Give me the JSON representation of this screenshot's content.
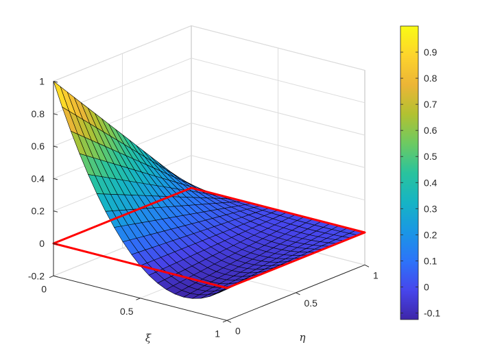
{
  "chart_data": {
    "type": "surface",
    "function": "N(xi,eta) = (1 - xi)(1 - 2 xi)(1 - eta)",
    "xlabel": "ξ",
    "ylabel": "η",
    "zlabel": "",
    "xlim": [
      0,
      1
    ],
    "ylim": [
      0,
      1
    ],
    "zlim": [
      -0.2,
      1
    ],
    "xticks": [
      "0",
      "0.5",
      "1"
    ],
    "yticks": [
      "0",
      "0.5",
      "1"
    ],
    "zticks": [
      "-0.2",
      "0",
      "0.2",
      "0.4",
      "0.6",
      "0.8",
      "1"
    ],
    "grid": true,
    "mesh": 21,
    "colormap": "parula",
    "colorbar": {
      "min": -0.125,
      "max": 1.0,
      "ticks": [
        "-0.1",
        "0",
        "0.1",
        "0.2",
        "0.3",
        "0.4",
        "0.5",
        "0.6",
        "0.7",
        "0.8",
        "0.9"
      ]
    },
    "reference_element": {
      "color": "#ff0000",
      "z": 0,
      "corners": [
        [
          0,
          0
        ],
        [
          1,
          0
        ],
        [
          1,
          1
        ],
        [
          0,
          1
        ]
      ]
    }
  }
}
